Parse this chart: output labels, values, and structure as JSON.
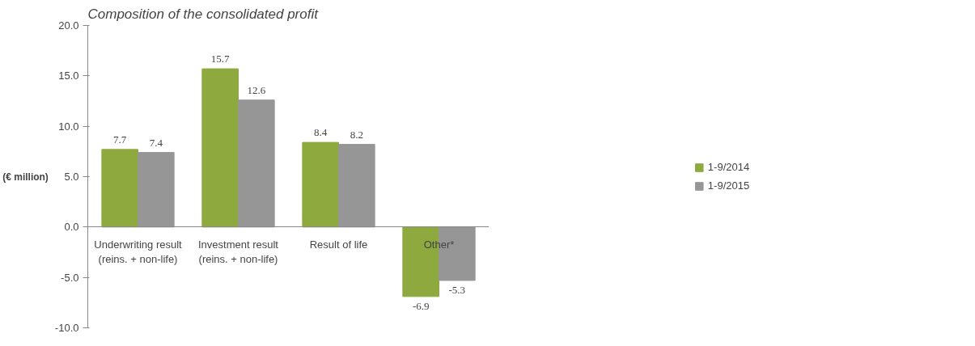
{
  "chart_data": {
    "type": "bar",
    "title": "Composition of the consolidated profit",
    "ylabel": "(€ million)",
    "categories": [
      "Underwriting result\n(reins. + non-life)",
      "Investment result\n(reins. + non-life)",
      "Result of life",
      "Other*"
    ],
    "series": [
      {
        "name": "1-9/2014",
        "color": "#8eaa3e",
        "values": [
          7.7,
          15.7,
          8.4,
          -6.9
        ]
      },
      {
        "name": "1-9/2015",
        "color": "#969696",
        "values": [
          7.4,
          12.6,
          8.2,
          -5.3
        ]
      }
    ],
    "ylim": [
      -10,
      20
    ],
    "yticks": [
      {
        "value": -10,
        "label": "-10.0"
      },
      {
        "value": -5,
        "label": "-5.0"
      },
      {
        "value": 0,
        "label": "0.0"
      },
      {
        "value": 5,
        "label": "5.0"
      },
      {
        "value": 10,
        "label": "10.0"
      },
      {
        "value": 15,
        "label": "15.0"
      },
      {
        "value": 20,
        "label": "20.0"
      }
    ],
    "data_labels": true,
    "grid": false,
    "legend": "right"
  }
}
